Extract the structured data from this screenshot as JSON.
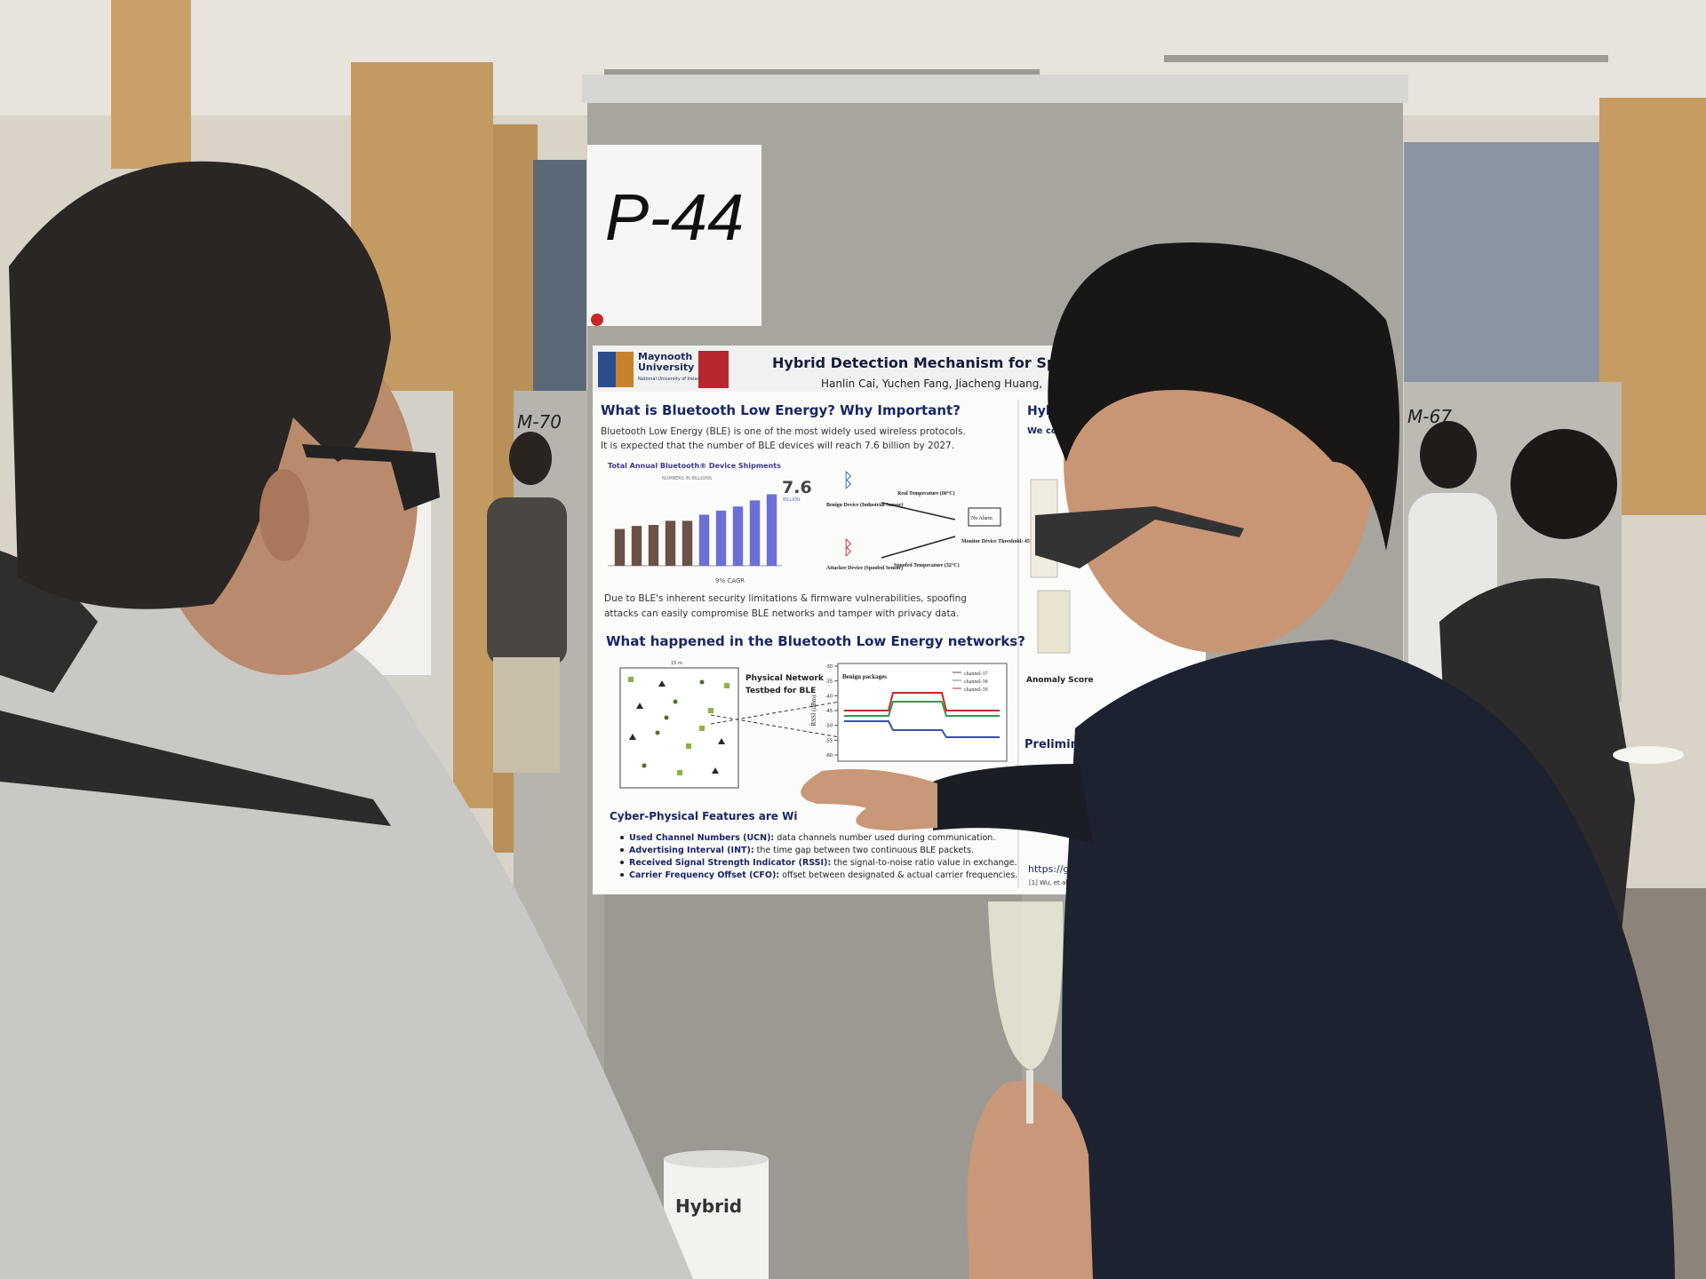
{
  "sign": "P-44",
  "side_signs": [
    "M-70",
    "M-67"
  ],
  "poster": {
    "logo": {
      "line1": "Maynooth",
      "line2": "University",
      "sub": "National University of Ireland Maynooth"
    },
    "title": "Hybrid Detection Mechanism for Spoofi",
    "authors": "Hanlin Cai, Yuchen Fang, Jiacheng Huang,",
    "section1": {
      "heading": "What is Bluetooth Low Energy? Why Important?",
      "lines": [
        "Bluetooth Low Energy (BLE) is one of the most widely used wireless protocols.",
        "It is expected that the number of BLE devices will reach 7.6 billion by 2027."
      ],
      "chart": {
        "title": "Total Annual Bluetooth® Device Shipments",
        "subtitle": "NUMBERS IN BILLIONS",
        "values": [
          3.6,
          3.9,
          4.0,
          4.4,
          4.4,
          5.0,
          5.4,
          5.8,
          6.4,
          7.0
        ],
        "colors": [
          "#6b5148",
          "#6b5148",
          "#6b5148",
          "#6b5148",
          "#6b5148",
          "#6b6fd6",
          "#6b6fd6",
          "#6b6fd6",
          "#6b6fd6",
          "#6b6fd6"
        ],
        "ylim": [
          0,
          8
        ],
        "headline": "7.6",
        "headline_unit": "BILLION",
        "cagr": "9% CAGR"
      },
      "diagram": {
        "benign": "Benign Device (Industrial Sensor)",
        "real_temp": "Real Temperature (60°C)",
        "no_alarm": "No Alarm",
        "monitor": "Monitor Device Threshold: 45°C",
        "attacker": "Attacker Device (Spoofed Sensor)",
        "spoofed_temp": "Spoofed Temperature (32°C)"
      },
      "para": [
        "Due to BLE's inherent security limitations & firmware vulnerabilities, spoofing",
        "attacks can easily compromise BLE networks and tamper with privacy data."
      ]
    },
    "section2": {
      "heading": "What happened in the Bluetooth Low Energy networks?",
      "map_width": "15 m",
      "testbed": [
        "Physical Network",
        "Testbed for BLE"
      ],
      "rssi_title": "Benign packages",
      "rssi_axis": "RSSI (dBm)",
      "rssi_ticks": [
        -30,
        -35,
        -40,
        -45,
        -50,
        -55,
        -60
      ],
      "channels": [
        "channel-37",
        "channel-38",
        "channel-39"
      ]
    },
    "section3": {
      "heading": "Cyber-Physical Features are Wi",
      "bullets": [
        {
          "term": "Used Channel Numbers (UCN):",
          "text": " data channels number used during communication."
        },
        {
          "term": "Advertising Interval (INT):",
          "text": " the time gap between two continuous BLE packets."
        },
        {
          "term": "Received Signal Strength Indicator (RSSI):",
          "text": " the signal-to-noise ratio value in exchange."
        },
        {
          "term": "Carrier Frequency Offset (CFO):",
          "text": " offset between designated & actual carrier frequencies."
        }
      ]
    },
    "right_column": {
      "heading": "Hybric",
      "intro": "We con",
      "anomaly": "Anomaly Score",
      "results": "Preliminary Experiment Res",
      "link": "https://g",
      "reference": "[1] Wu, et al, BlueShiel"
    }
  },
  "bin_label": "Hybrid"
}
